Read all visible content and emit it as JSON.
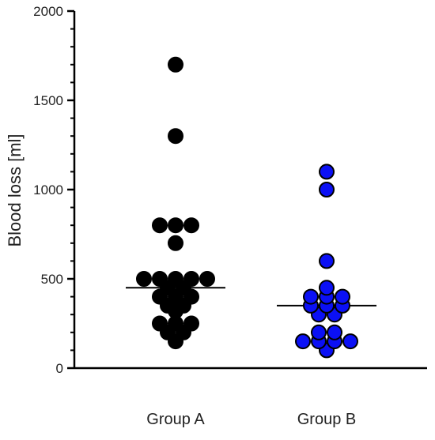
{
  "chart_data": {
    "type": "scatter",
    "title": "",
    "xlabel": "",
    "ylabel": "Blood loss [ml]",
    "ylim": [
      0,
      2000
    ],
    "yticks": [
      0,
      500,
      1000,
      1500,
      2000
    ],
    "minor_tick_step": 100,
    "grid": false,
    "legend": "none",
    "categories": [
      "Group A",
      "Group B"
    ],
    "series": [
      {
        "category": "Group A",
        "color": "#000000",
        "median": 450,
        "values": [
          1700,
          1300,
          800,
          800,
          800,
          700,
          500,
          500,
          500,
          500,
          500,
          450,
          450,
          400,
          400,
          400,
          350,
          350,
          320,
          250,
          250,
          250,
          200,
          200,
          150
        ]
      },
      {
        "category": "Group B",
        "color": "#0b10f5",
        "median": 350,
        "values": [
          1100,
          1000,
          600,
          450,
          400,
          400,
          400,
          350,
          350,
          350,
          300,
          300,
          200,
          200,
          150,
          150,
          150,
          150,
          100
        ]
      }
    ]
  }
}
